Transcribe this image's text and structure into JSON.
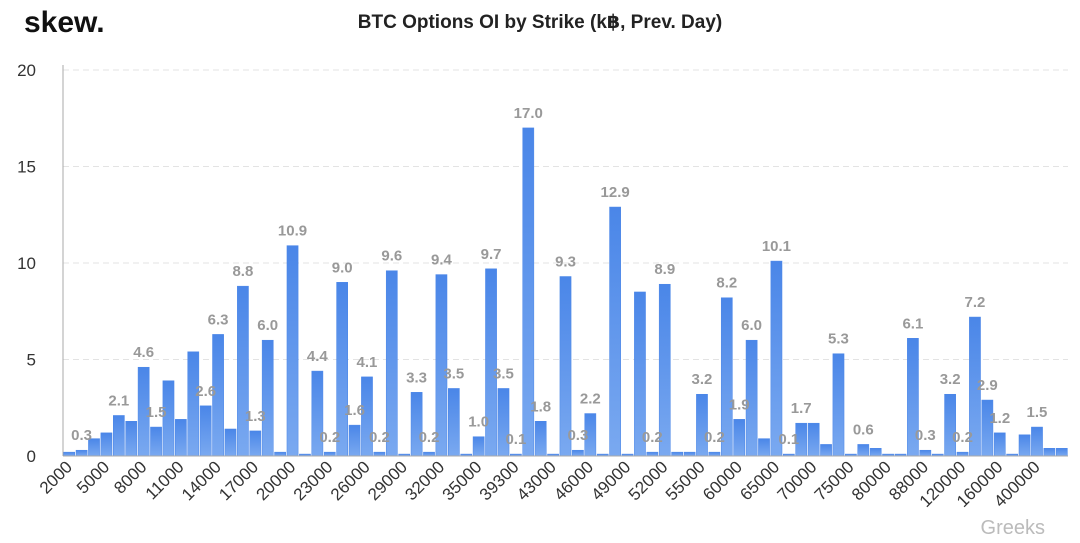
{
  "logo": "skew.",
  "watermark": "Greeks",
  "chart_data": {
    "type": "bar",
    "title": "BTC Options OI by Strike (k฿, Prev. Day)",
    "color": "#4a86e8",
    "categories": [
      "2000",
      null,
      null,
      "5000",
      null,
      null,
      "8000",
      null,
      null,
      "11000",
      null,
      null,
      "14000",
      null,
      null,
      "17000",
      null,
      null,
      "20000",
      null,
      null,
      "23000",
      null,
      null,
      "26000",
      null,
      null,
      "29000",
      null,
      null,
      "32000",
      null,
      null,
      "35000",
      null,
      null,
      "39300",
      null,
      null,
      "43000",
      null,
      null,
      "46000",
      null,
      null,
      "49000",
      null,
      null,
      "52000",
      null,
      null,
      "55000",
      null,
      null,
      "60000",
      null,
      null,
      "65000",
      null,
      null,
      "70000",
      null,
      null,
      "75000",
      null,
      null,
      "80000",
      null,
      null,
      "88000",
      null,
      null,
      "120000",
      null,
      null,
      "160000",
      null,
      null,
      "400000",
      null,
      null
    ],
    "values": [
      0.2,
      0.3,
      0.9,
      1.2,
      2.1,
      1.8,
      4.6,
      1.5,
      3.9,
      1.9,
      5.4,
      2.6,
      6.3,
      1.4,
      8.8,
      1.3,
      6.0,
      0.2,
      10.9,
      0.1,
      4.4,
      0.2,
      9.0,
      1.6,
      4.1,
      0.2,
      9.6,
      0.1,
      3.3,
      0.2,
      9.4,
      3.5,
      0.1,
      1.0,
      9.7,
      3.5,
      0.1,
      17.0,
      1.8,
      0.1,
      9.3,
      0.3,
      2.2,
      0.1,
      12.9,
      0.1,
      8.5,
      0.2,
      8.9,
      0.2,
      0.2,
      3.2,
      0.2,
      8.2,
      1.9,
      6.0,
      0.9,
      10.1,
      0.1,
      1.7,
      1.7,
      0.6,
      5.3,
      0.1,
      0.6,
      0.4,
      0.1,
      0.1,
      6.1,
      0.3,
      0.1,
      3.2,
      0.2,
      7.2,
      2.9,
      1.2,
      0.1,
      1.1,
      1.5,
      0.4,
      0.4
    ],
    "value_labels": [
      null,
      "0.3",
      null,
      null,
      "2.1",
      null,
      "4.6",
      "1.5",
      null,
      null,
      null,
      "2.6",
      "6.3",
      null,
      "8.8",
      "1.3",
      "6.0",
      null,
      "10.9",
      null,
      "4.4",
      "0.2",
      "9.0",
      "1.6",
      "4.1",
      "0.2",
      "9.6",
      null,
      "3.3",
      "0.2",
      "9.4",
      "3.5",
      null,
      "1.0",
      "9.7",
      "3.5",
      "0.1",
      "17.0",
      "1.8",
      null,
      "9.3",
      "0.3",
      "2.2",
      null,
      "12.9",
      null,
      null,
      "0.2",
      "8.9",
      null,
      null,
      "3.2",
      "0.2",
      "8.2",
      "1.9",
      "6.0",
      null,
      "10.1",
      "0.1",
      "1.7",
      null,
      null,
      "5.3",
      null,
      "0.6",
      null,
      null,
      null,
      "6.1",
      "0.3",
      null,
      "3.2",
      "0.2",
      "7.2",
      "2.9",
      "1.2",
      null,
      null,
      "1.5",
      null,
      null
    ],
    "ylim": [
      0,
      20
    ],
    "yticks": [
      0,
      5,
      10,
      15,
      20
    ],
    "grid": true
  }
}
